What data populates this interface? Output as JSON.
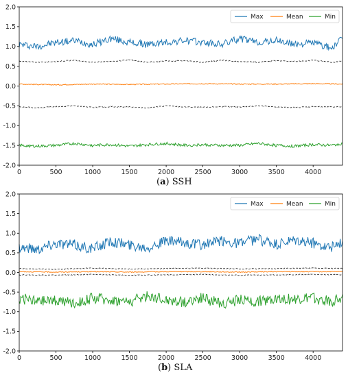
{
  "chart_data": [
    {
      "type": "line",
      "caption": {
        "letter": "a",
        "text": "SSH"
      },
      "xlim": [
        0,
        4400
      ],
      "ylim": [
        -2.0,
        2.0
      ],
      "xticks": [
        0,
        500,
        1000,
        1500,
        2000,
        2500,
        3000,
        3500,
        4000
      ],
      "yticks": [
        2.0,
        1.5,
        1.0,
        0.5,
        0.0,
        -0.5,
        -1.0,
        -1.5,
        -2.0
      ],
      "xtick_labels": [
        "0",
        "500",
        "1000",
        "1500",
        "2000",
        "2500",
        "3000",
        "3500",
        "4000"
      ],
      "ytick_labels": [
        "2.0",
        "1.5",
        "1.0",
        "0.5",
        "0.0",
        "-0.5",
        "-1.0",
        "-1.5",
        "-2.0"
      ],
      "grid": false,
      "legend_position": "top-right",
      "series": [
        {
          "name": "Max",
          "color": "#1f77b4",
          "x": [
            0,
            250,
            500,
            750,
            1000,
            1250,
            1500,
            1750,
            2000,
            2250,
            2500,
            2750,
            3000,
            3250,
            3500,
            3750,
            4000,
            4250,
            4400
          ],
          "y": [
            1.05,
            1.0,
            1.1,
            1.15,
            1.05,
            1.2,
            1.1,
            1.05,
            1.1,
            1.15,
            1.1,
            1.05,
            1.2,
            1.1,
            1.15,
            1.05,
            1.1,
            0.95,
            1.2
          ]
        },
        {
          "name": "Mean",
          "color": "#ff7f0e",
          "x": [
            0,
            500,
            1000,
            1500,
            2000,
            2500,
            3000,
            3500,
            4000,
            4400
          ],
          "y": [
            0.05,
            0.03,
            0.05,
            0.04,
            0.05,
            0.06,
            0.05,
            0.05,
            0.06,
            0.05
          ]
        },
        {
          "name": "Min",
          "color": "#2ca02c",
          "x": [
            0,
            250,
            500,
            750,
            1000,
            1250,
            1500,
            1750,
            2000,
            2250,
            2500,
            2750,
            3000,
            3250,
            3500,
            3750,
            4000,
            4250,
            4400
          ],
          "y": [
            -1.5,
            -1.52,
            -1.5,
            -1.45,
            -1.5,
            -1.48,
            -1.52,
            -1.48,
            -1.45,
            -1.5,
            -1.48,
            -1.5,
            -1.5,
            -1.45,
            -1.5,
            -1.52,
            -1.48,
            -1.5,
            -1.45
          ]
        },
        {
          "color": "#333333",
          "style": "dashed",
          "x": [
            0,
            250,
            500,
            750,
            1000,
            1250,
            1500,
            1750,
            2000,
            2250,
            2500,
            2750,
            3000,
            3250,
            3500,
            3750,
            4000,
            4250,
            4400
          ],
          "y": [
            0.63,
            0.6,
            0.62,
            0.65,
            0.6,
            0.62,
            0.66,
            0.6,
            0.63,
            0.64,
            0.6,
            0.65,
            0.62,
            0.6,
            0.64,
            0.62,
            0.65,
            0.6,
            0.63
          ]
        },
        {
          "color": "#333333",
          "style": "dashed",
          "x": [
            0,
            250,
            500,
            750,
            1000,
            1250,
            1500,
            1750,
            2000,
            2250,
            2500,
            2750,
            3000,
            3250,
            3500,
            3750,
            4000,
            4250,
            4400
          ],
          "y": [
            -0.53,
            -0.55,
            -0.52,
            -0.5,
            -0.54,
            -0.52,
            -0.53,
            -0.55,
            -0.5,
            -0.53,
            -0.54,
            -0.52,
            -0.53,
            -0.5,
            -0.53,
            -0.54,
            -0.52,
            -0.53,
            -0.52
          ]
        }
      ]
    },
    {
      "type": "line",
      "caption": {
        "letter": "b",
        "text": "SLA"
      },
      "xlim": [
        0,
        4400
      ],
      "ylim": [
        -2.0,
        2.0
      ],
      "xticks": [
        0,
        500,
        1000,
        1500,
        2000,
        2500,
        3000,
        3500,
        4000
      ],
      "yticks": [
        2.0,
        1.5,
        1.0,
        0.5,
        0.0,
        -0.5,
        -1.0,
        -1.5,
        -2.0
      ],
      "xtick_labels": [
        "0",
        "500",
        "1000",
        "1500",
        "2000",
        "2500",
        "3000",
        "3500",
        "4000"
      ],
      "ytick_labels": [
        "2.0",
        "1.5",
        "1.0",
        "0.5",
        "0.0",
        "-0.5",
        "-1.0",
        "-1.5",
        "-2.0"
      ],
      "grid": false,
      "legend_position": "top-right",
      "series": [
        {
          "name": "Max",
          "color": "#1f77b4",
          "x": [
            0,
            250,
            500,
            750,
            1000,
            1250,
            1500,
            1750,
            2000,
            2250,
            2500,
            2750,
            3000,
            3250,
            3500,
            3750,
            4000,
            4250,
            4400
          ],
          "y": [
            0.65,
            0.6,
            0.75,
            0.7,
            0.6,
            0.8,
            0.7,
            0.65,
            0.8,
            0.75,
            0.7,
            0.8,
            0.75,
            0.85,
            0.7,
            0.8,
            0.75,
            0.65,
            0.75
          ]
        },
        {
          "name": "Mean",
          "color": "#ff7f0e",
          "x": [
            0,
            500,
            1000,
            1500,
            2000,
            2500,
            3000,
            3500,
            4000,
            4400
          ],
          "y": [
            0.02,
            0.01,
            0.02,
            0.01,
            0.02,
            0.02,
            0.01,
            0.02,
            0.02,
            0.02
          ]
        },
        {
          "name": "Min",
          "color": "#2ca02c",
          "x": [
            0,
            250,
            500,
            750,
            1000,
            1250,
            1500,
            1750,
            2000,
            2250,
            2500,
            2750,
            3000,
            3250,
            3500,
            3750,
            4000,
            4250,
            4400
          ],
          "y": [
            -0.65,
            -0.75,
            -0.7,
            -0.8,
            -0.65,
            -0.7,
            -0.75,
            -0.6,
            -0.7,
            -0.75,
            -0.65,
            -0.8,
            -0.7,
            -0.75,
            -0.65,
            -0.7,
            -0.65,
            -0.75,
            -0.6
          ]
        },
        {
          "color": "#333333",
          "style": "dashed",
          "x": [
            0,
            500,
            1000,
            1500,
            2000,
            2500,
            3000,
            3500,
            4000,
            4400
          ],
          "y": [
            0.1,
            0.08,
            0.11,
            0.09,
            0.1,
            0.11,
            0.09,
            0.1,
            0.11,
            0.1
          ]
        },
        {
          "color": "#333333",
          "style": "dashed",
          "x": [
            0,
            500,
            1000,
            1500,
            2000,
            2500,
            3000,
            3500,
            4000,
            4400
          ],
          "y": [
            -0.06,
            -0.07,
            -0.05,
            -0.07,
            -0.06,
            -0.05,
            -0.07,
            -0.06,
            -0.05,
            -0.06
          ]
        }
      ]
    }
  ]
}
